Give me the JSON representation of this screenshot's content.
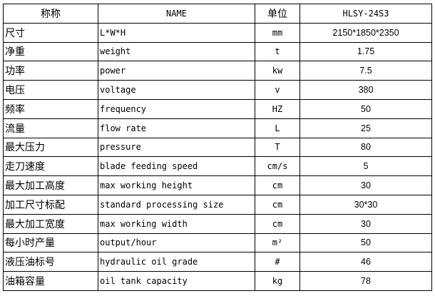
{
  "header": {
    "name_cn": "称称",
    "name_en": "NAME",
    "unit": "单位",
    "model": "HLSY-24S3"
  },
  "rows": [
    {
      "cn": "尺寸",
      "en": "L*W*H",
      "unit": "mm",
      "value": "2150*1850*2350"
    },
    {
      "cn": "净重",
      "en": "weight",
      "unit": "t",
      "value": "1.75"
    },
    {
      "cn": "功率",
      "en": "power",
      "unit": "kw",
      "value": "7.5"
    },
    {
      "cn": "电压",
      "en": "voltage",
      "unit": "v",
      "value": "380"
    },
    {
      "cn": "频率",
      "en": "frequency",
      "unit": "HZ",
      "value": "50"
    },
    {
      "cn": "流量",
      "en": "flow rate",
      "unit": "L",
      "value": "25"
    },
    {
      "cn": "最大压力",
      "en": "pressure",
      "unit": "T",
      "value": "80"
    },
    {
      "cn": "走刀速度",
      "en": "blade feeding speed",
      "unit": "cm/s",
      "value": "5"
    },
    {
      "cn": "最大加工高度",
      "en": "max working height",
      "unit": "cm",
      "value": "30"
    },
    {
      "cn": "加工尺寸标配",
      "en": "standard processing size",
      "unit": "cm",
      "value": "30*30"
    },
    {
      "cn": "最大加工宽度",
      "en": "max working width",
      "unit": "cm",
      "value": "30"
    },
    {
      "cn": "每小时产量",
      "en": "output/hour",
      "unit": "m²",
      "value": "50"
    },
    {
      "cn": "液压油标号",
      "en": "hydraulic oil grade",
      "unit": "#",
      "value": "46"
    },
    {
      "cn": "油箱容量",
      "en": "oil tank capacity",
      "unit": "kg",
      "value": "78"
    }
  ]
}
